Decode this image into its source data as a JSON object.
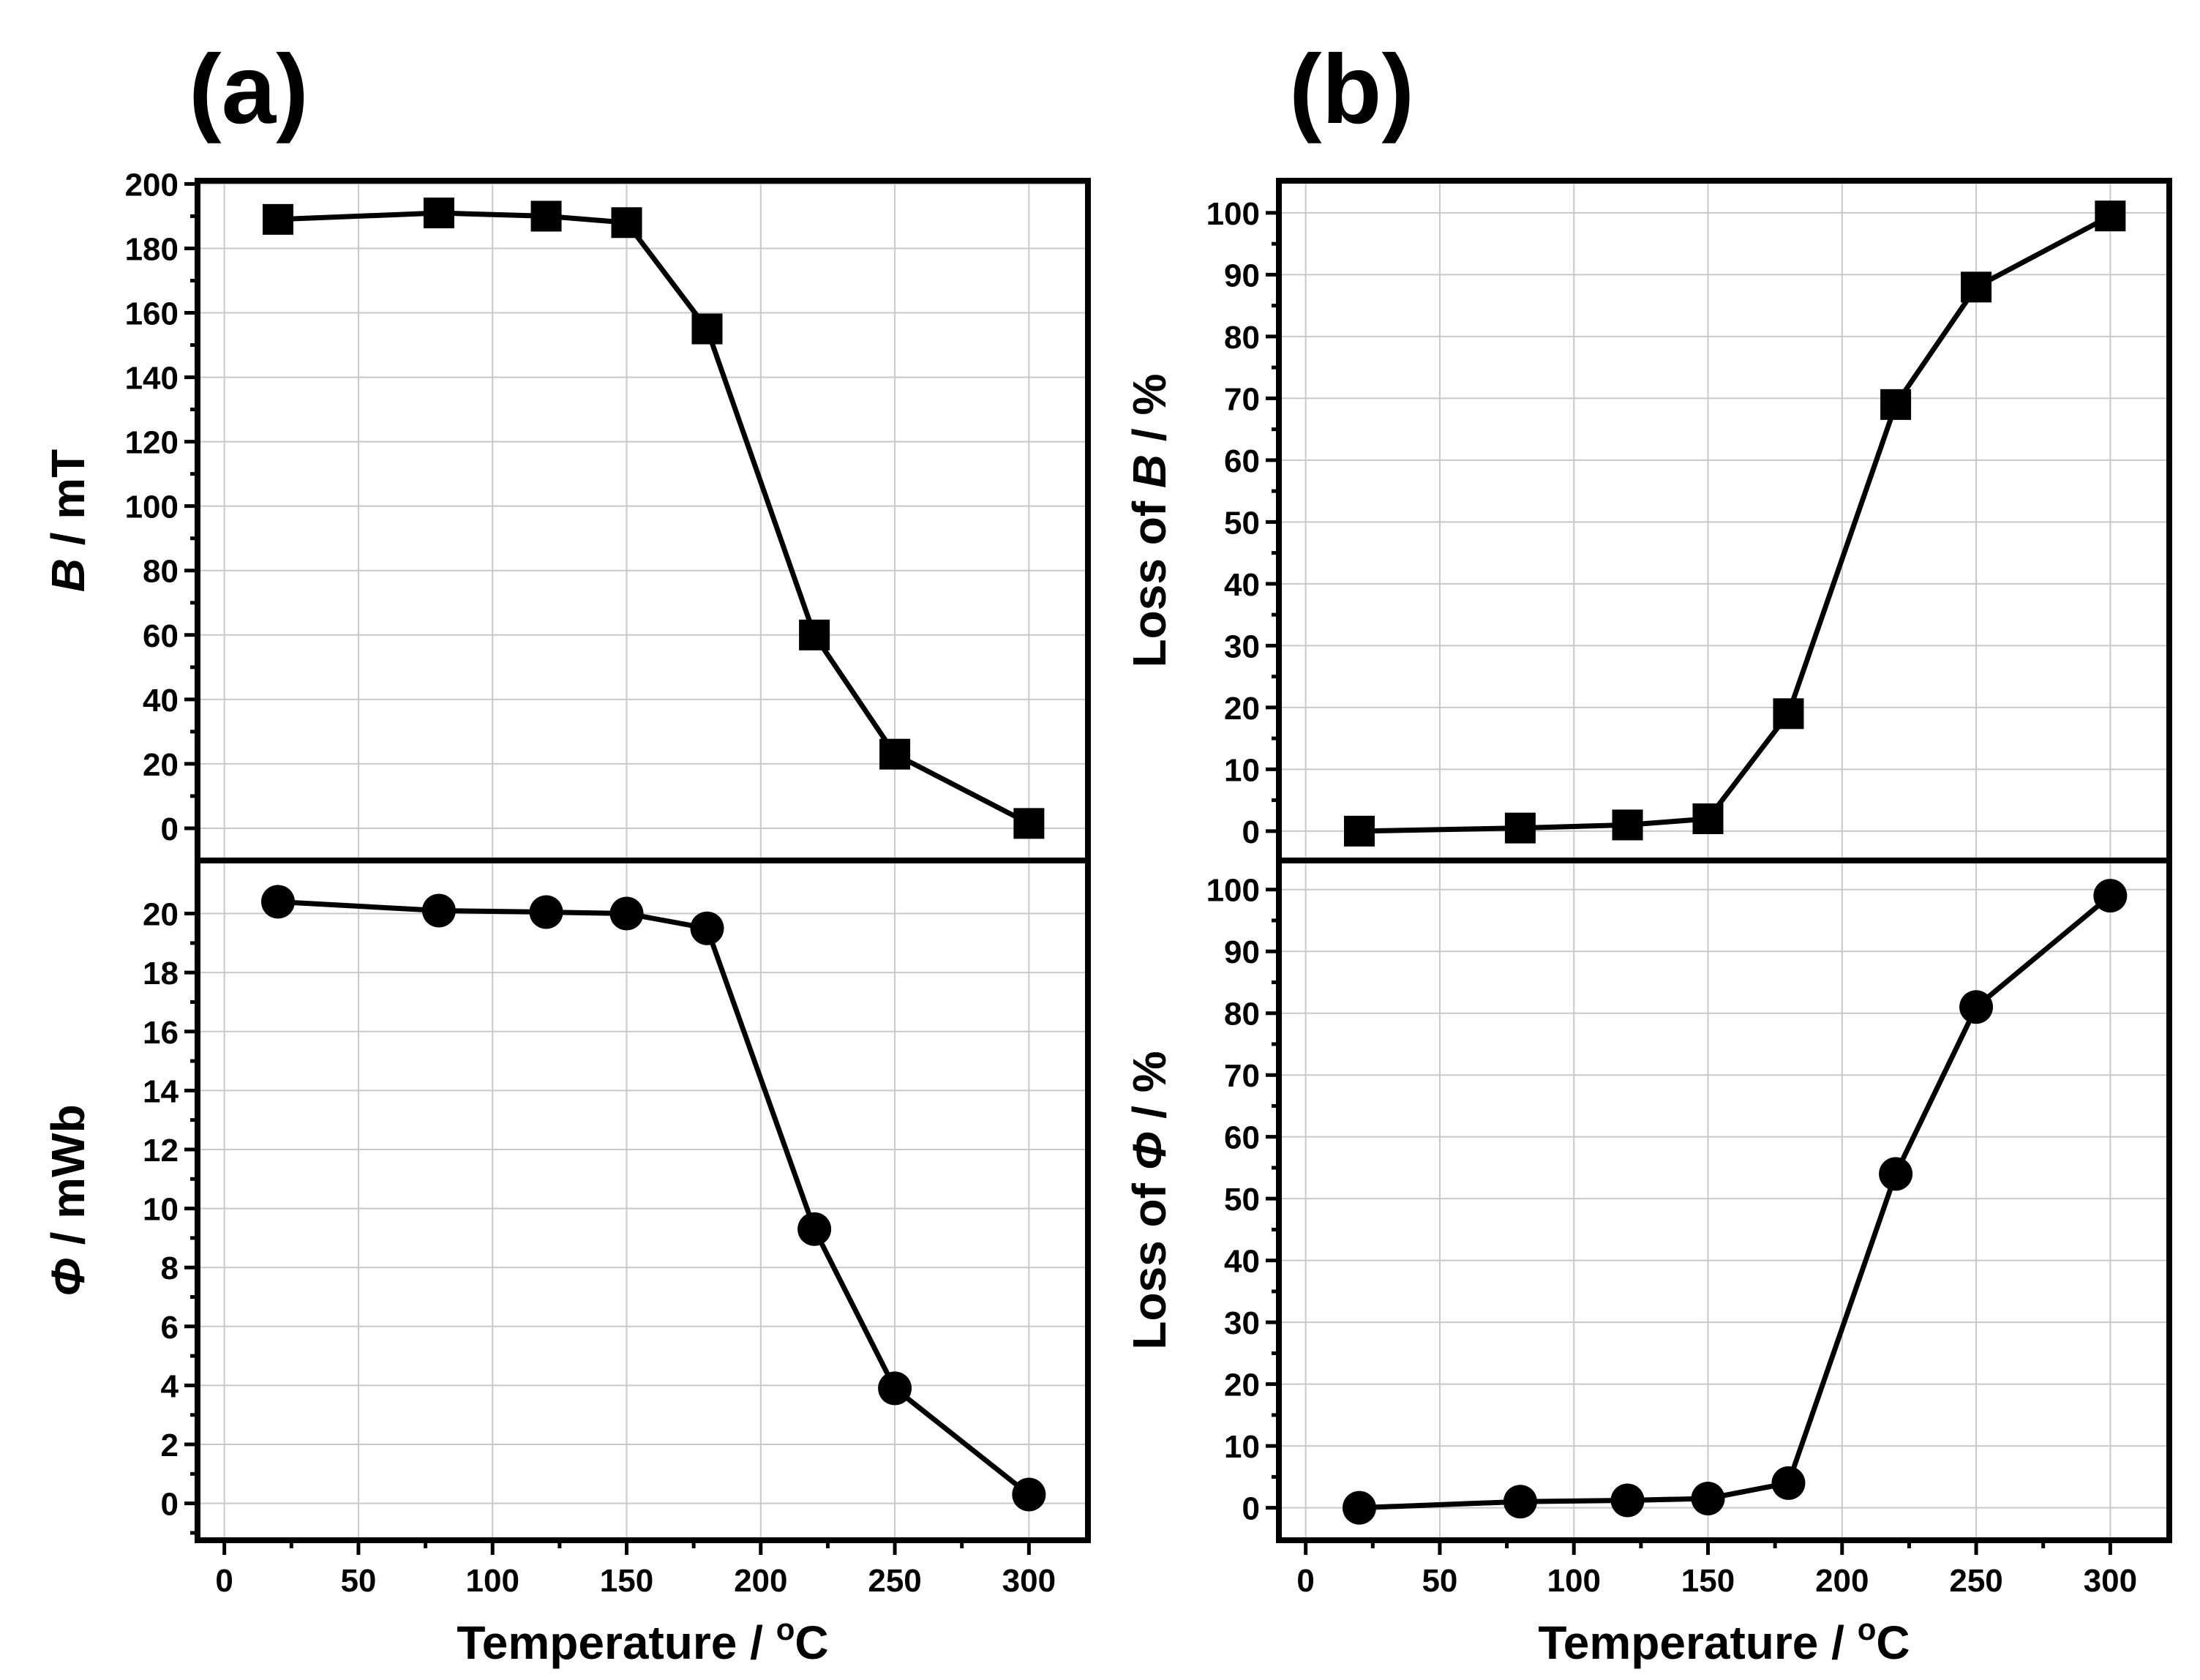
{
  "figure": {
    "panel_labels": [
      "(a)",
      "(b)"
    ],
    "x_title_left": "Temperature / ",
    "x_title_sup": "o",
    "x_title_right": "C"
  },
  "chart_data": [
    {
      "id": "a-top",
      "type": "line",
      "panel": "(a)",
      "marker": "square",
      "ylabel_main": "B",
      "ylabel_rest": " / mT",
      "x": [
        20,
        80,
        120,
        150,
        180,
        220,
        250,
        300
      ],
      "values": [
        189,
        191,
        190,
        188,
        155,
        60,
        23,
        1.5
      ],
      "xlim": [
        -10,
        322
      ],
      "ylim": [
        -10,
        201
      ],
      "xticks": [
        0,
        50,
        100,
        150,
        200,
        250,
        300
      ],
      "yticks": [
        0,
        20,
        40,
        60,
        80,
        100,
        120,
        140,
        160,
        180,
        200
      ],
      "grid": true
    },
    {
      "id": "a-bottom",
      "type": "line",
      "panel": "(a)",
      "marker": "circle",
      "xlabel": "Temperature / °C",
      "ylabel_main": "Φ",
      "ylabel_rest": " / mWb",
      "x": [
        20,
        80,
        120,
        150,
        180,
        220,
        250,
        300
      ],
      "values": [
        20.4,
        20.1,
        20.05,
        20.0,
        19.5,
        9.3,
        3.9,
        0.3
      ],
      "xlim": [
        -10,
        322
      ],
      "ylim": [
        -1.25,
        21.8
      ],
      "xticks": [
        0,
        50,
        100,
        150,
        200,
        250,
        300
      ],
      "yticks": [
        0,
        2,
        4,
        6,
        8,
        10,
        12,
        14,
        16,
        18,
        20
      ],
      "grid": true
    },
    {
      "id": "b-top",
      "type": "line",
      "panel": "(b)",
      "marker": "square",
      "ylabel_prefix": "Loss of ",
      "ylabel_main": "B",
      "ylabel_rest": "  / %",
      "x": [
        20,
        80,
        120,
        150,
        180,
        220,
        250,
        300
      ],
      "values": [
        0,
        0.5,
        1,
        2,
        19,
        69,
        88,
        99.5
      ],
      "xlim": [
        -10,
        322
      ],
      "ylim": [
        -4.75,
        105.2
      ],
      "xticks": [
        0,
        50,
        100,
        150,
        200,
        250,
        300
      ],
      "yticks": [
        0,
        10,
        20,
        30,
        40,
        50,
        60,
        70,
        80,
        90,
        100
      ],
      "grid": true
    },
    {
      "id": "b-bottom",
      "type": "line",
      "panel": "(b)",
      "marker": "circle",
      "xlabel": "Temperature / °C",
      "ylabel_prefix": "Loss of ",
      "ylabel_main": "Φ",
      "ylabel_rest": "  / %",
      "x": [
        20,
        80,
        120,
        150,
        180,
        220,
        250,
        300
      ],
      "values": [
        0,
        1,
        1.2,
        1.5,
        4,
        54,
        81,
        99
      ],
      "xlim": [
        -10,
        322
      ],
      "ylim": [
        -5.25,
        104.7
      ],
      "xticks": [
        0,
        50,
        100,
        150,
        200,
        250,
        300
      ],
      "yticks": [
        0,
        10,
        20,
        30,
        40,
        50,
        60,
        70,
        80,
        90,
        100
      ],
      "grid": true
    }
  ]
}
